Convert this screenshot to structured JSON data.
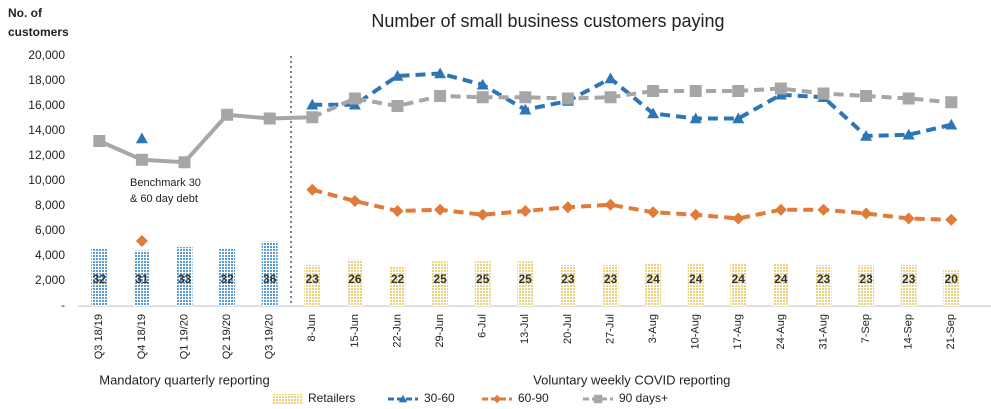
{
  "chart_data": {
    "type": "combo",
    "title": "Number of small business customers paying",
    "y_axis_label": [
      "No. of",
      "customers"
    ],
    "benchmark_note": [
      "Benchmark 30",
      "& 60 day debt"
    ],
    "sections": [
      {
        "name": "Mandatory quarterly reporting",
        "categories": [
          "Q3 18/19",
          "Q4 18/19",
          "Q1 19/20",
          "Q2 19/20",
          "Q3 19/20"
        ]
      },
      {
        "name": "Voluntary weekly COVID reporting",
        "categories": [
          "8-Jun",
          "15-Jun",
          "22-Jun",
          "29-Jun",
          "6-Jul",
          "13-Jul",
          "20-Jul",
          "27-Jul",
          "3-Aug",
          "10-Aug",
          "17-Aug",
          "24-Aug",
          "31-Aug",
          "7-Sep",
          "14-Sep",
          "21-Sep"
        ]
      }
    ],
    "series": [
      {
        "name": "Retailers",
        "kind": "bar",
        "axis": "y2",
        "section_colors": [
          "#5b9bd5",
          "#e8d27a"
        ],
        "values": [
          32,
          31,
          33,
          32,
          36,
          23,
          26,
          22,
          25,
          25,
          25,
          23,
          23,
          24,
          24,
          24,
          24,
          23,
          23,
          23,
          20
        ]
      },
      {
        "name": "30-60",
        "kind": "line",
        "marker": "triangle",
        "color": "#2e75b6",
        "values": [
          null,
          13400,
          null,
          null,
          null,
          16100,
          16100,
          18400,
          18600,
          17700,
          15700,
          16400,
          18200,
          15400,
          15000,
          15000,
          16900,
          16700,
          13600,
          13700,
          14500
        ]
      },
      {
        "name": "60-90",
        "kind": "line",
        "marker": "diamond",
        "color": "#e07b39",
        "values": [
          null,
          5200,
          null,
          null,
          null,
          9300,
          8400,
          7600,
          7700,
          7300,
          7600,
          7900,
          8100,
          7500,
          7300,
          7000,
          7700,
          7700,
          7400,
          7000,
          6900
        ]
      },
      {
        "name": "90 days+",
        "kind": "line",
        "marker": "square",
        "color": "#a6a6a6",
        "values": [
          13200,
          11700,
          11500,
          15300,
          15000,
          15100,
          16600,
          16000,
          16800,
          16700,
          16700,
          16600,
          16700,
          17200,
          17200,
          17200,
          17400,
          17000,
          16800,
          16600,
          16300
        ]
      }
    ],
    "ylim": [
      0,
      20000
    ],
    "yticks": [
      {
        "value": 0,
        "label": "-"
      },
      {
        "value": 2000,
        "label": "2,000"
      },
      {
        "value": 4000,
        "label": "4,000"
      },
      {
        "value": 6000,
        "label": "6,000"
      },
      {
        "value": 8000,
        "label": "8,000"
      },
      {
        "value": 10000,
        "label": "10,000"
      },
      {
        "value": 12000,
        "label": "12,000"
      },
      {
        "value": 14000,
        "label": "14,000"
      },
      {
        "value": 16000,
        "label": "16,000"
      },
      {
        "value": 18000,
        "label": "18,000"
      },
      {
        "value": 20000,
        "label": "20,000"
      }
    ],
    "y2lim": [
      0,
      140
    ],
    "legend": "bottom"
  }
}
